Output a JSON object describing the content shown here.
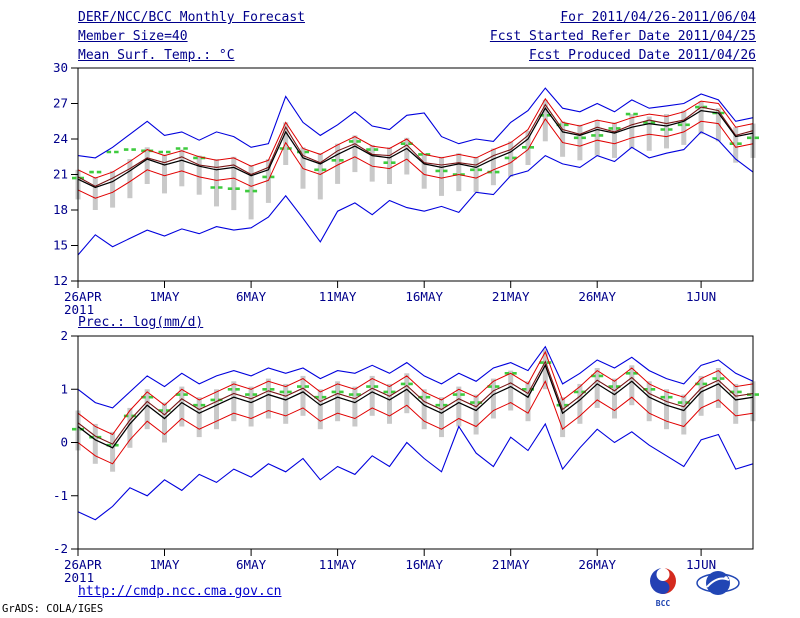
{
  "header": {
    "title": "DERF/NCC/BCC Monthly Forecast",
    "period": "For 2011/04/26-2011/06/04",
    "member_size": "Member Size=40",
    "refer_date": "Fcst Started Refer Date 2011/04/25",
    "produced_date": "Fcst Produced Date 2011/04/26"
  },
  "xaxis": {
    "n_days": 40,
    "tick_labels": [
      "26APR",
      "1MAY",
      "6MAY",
      "11MAY",
      "16MAY",
      "21MAY",
      "26MAY",
      "1JUN"
    ],
    "tick_positions": [
      0,
      5,
      10,
      15,
      20,
      25,
      30,
      36
    ],
    "year_label": "2011"
  },
  "colors": {
    "text_navy": "#00008b",
    "line_blue": "#0000dd",
    "line_red": "#e00000",
    "line_black": "#000000",
    "line_maroon": "#7a1616",
    "marker_green": "#3ecb3e",
    "bar_gray": "#c9c9c9",
    "link_blue": "#0000cd"
  },
  "chart_data": [
    {
      "type": "line",
      "title": "Mean Surf. Temp.: °C",
      "ylabel": "°C",
      "ylim": [
        12,
        30
      ],
      "yticks": [
        12,
        15,
        18,
        21,
        24,
        27,
        30
      ],
      "grid": false,
      "legend": "none",
      "series": [
        {
          "name": "spread-bar",
          "style": "bar",
          "color": "#c9c9c9",
          "low": [
            18.9,
            18.0,
            18.2,
            19.0,
            20.2,
            19.4,
            20.0,
            19.3,
            18.3,
            18.0,
            17.2,
            18.6,
            21.8,
            19.8,
            18.9,
            20.2,
            21.2,
            20.4,
            20.2,
            21.0,
            19.8,
            19.2,
            19.6,
            19.5,
            20.1,
            20.8,
            21.8,
            23.8,
            22.5,
            22.2,
            22.6,
            22.4,
            23.2,
            23.0,
            23.2,
            23.5,
            24.4,
            23.8,
            22.0,
            22.4
          ],
          "high": [
            21.4,
            20.8,
            21.3,
            22.3,
            23.3,
            22.7,
            23.1,
            22.6,
            22.3,
            22.5,
            21.8,
            22.3,
            25.4,
            23.3,
            22.8,
            23.6,
            24.3,
            23.5,
            23.3,
            24.1,
            22.8,
            22.5,
            22.8,
            22.5,
            23.2,
            23.8,
            24.7,
            27.3,
            25.5,
            25.2,
            25.6,
            25.4,
            26.1,
            25.9,
            26.1,
            26.4,
            27.2,
            26.6,
            25.0,
            25.3
          ]
        },
        {
          "name": "observation",
          "style": "dashes",
          "color": "#3ecb3e",
          "values": [
            20.7,
            21.2,
            22.9,
            23.1,
            23.0,
            22.9,
            23.2,
            22.4,
            19.9,
            19.8,
            19.6,
            20.8,
            23.2,
            22.9,
            21.4,
            22.2,
            23.8,
            23.1,
            22.0,
            23.6,
            22.7,
            21.3,
            21.0,
            21.4,
            21.2,
            22.4,
            23.3,
            26.0,
            25.2,
            24.1,
            24.3,
            24.9,
            26.1,
            25.4,
            24.8,
            25.2,
            26.7,
            26.2,
            23.6,
            24.1
          ]
        },
        {
          "name": "ensemble-max",
          "style": "line",
          "color": "#0000dd",
          "values": [
            22.6,
            22.4,
            23.3,
            24.4,
            25.5,
            24.3,
            24.6,
            23.9,
            24.6,
            24.2,
            23.3,
            23.6,
            27.6,
            25.4,
            24.3,
            25.2,
            26.3,
            25.1,
            24.8,
            26.0,
            26.2,
            24.2,
            23.6,
            24.0,
            23.8,
            25.4,
            26.4,
            28.3,
            26.6,
            26.3,
            27.0,
            26.3,
            27.3,
            26.6,
            26.8,
            27.0,
            27.8,
            27.3,
            25.5,
            25.8
          ]
        },
        {
          "name": "ensemble-min",
          "style": "line",
          "color": "#0000dd",
          "values": [
            14.2,
            15.9,
            14.9,
            15.6,
            16.3,
            15.8,
            16.4,
            16.0,
            16.6,
            16.3,
            16.5,
            17.4,
            19.2,
            17.3,
            15.3,
            17.9,
            18.6,
            17.6,
            18.8,
            18.2,
            17.9,
            18.3,
            17.8,
            19.5,
            19.3,
            20.9,
            21.3,
            22.6,
            21.9,
            21.6,
            22.6,
            22.1,
            23.3,
            22.4,
            22.8,
            23.1,
            24.6,
            23.9,
            22.3,
            21.2
          ]
        },
        {
          "name": "plus-1sd",
          "style": "line",
          "color": "#e00000",
          "values": [
            21.4,
            20.7,
            21.2,
            22.1,
            23.1,
            22.6,
            23.0,
            22.5,
            22.2,
            22.4,
            21.7,
            22.2,
            25.4,
            23.2,
            22.7,
            23.5,
            24.2,
            23.4,
            23.2,
            24.0,
            22.7,
            22.4,
            22.7,
            22.4,
            23.1,
            23.7,
            24.8,
            27.4,
            25.4,
            25.1,
            25.6,
            25.3,
            25.8,
            26.1,
            25.9,
            26.3,
            27.2,
            27.0,
            25.0,
            25.3
          ]
        },
        {
          "name": "minus-1sd",
          "style": "line",
          "color": "#e00000",
          "values": [
            19.7,
            19.0,
            19.5,
            20.4,
            21.4,
            20.9,
            21.3,
            20.8,
            20.5,
            20.7,
            20.0,
            20.5,
            23.7,
            21.5,
            21.0,
            21.8,
            22.5,
            21.7,
            21.5,
            22.3,
            21.0,
            20.7,
            21.0,
            20.7,
            21.4,
            22.0,
            23.1,
            25.7,
            23.7,
            23.4,
            23.9,
            23.6,
            24.1,
            24.4,
            24.2,
            24.6,
            25.5,
            25.3,
            23.3,
            23.6
          ]
        },
        {
          "name": "control-run",
          "style": "line",
          "color": "#7a1616",
          "values": [
            20.8,
            20.0,
            20.7,
            21.5,
            22.4,
            22.0,
            22.5,
            21.8,
            21.6,
            21.8,
            21.0,
            21.6,
            25.0,
            22.6,
            22.0,
            23.0,
            23.6,
            22.7,
            22.6,
            23.5,
            22.0,
            21.8,
            22.0,
            21.8,
            22.6,
            23.1,
            24.3,
            26.9,
            24.8,
            24.4,
            25.0,
            24.6,
            25.2,
            25.6,
            25.3,
            25.6,
            26.7,
            26.4,
            24.3,
            24.7
          ]
        },
        {
          "name": "ensemble-mean",
          "style": "line",
          "color": "#000000",
          "values": [
            20.6,
            19.9,
            20.4,
            21.3,
            22.3,
            21.8,
            22.2,
            21.7,
            21.4,
            21.6,
            20.9,
            21.4,
            24.6,
            22.4,
            21.9,
            22.7,
            23.4,
            22.6,
            22.4,
            23.2,
            21.9,
            21.6,
            21.9,
            21.6,
            22.3,
            22.9,
            24.0,
            26.6,
            24.6,
            24.3,
            24.8,
            24.5,
            25.0,
            25.3,
            25.1,
            25.5,
            26.4,
            26.2,
            24.2,
            24.5
          ]
        }
      ]
    },
    {
      "type": "line",
      "title": "Prec.: log(mm/d)",
      "ylabel": "log(mm/d)",
      "ylim": [
        -2,
        2
      ],
      "yticks": [
        -2,
        -1,
        0,
        1,
        2
      ],
      "grid": false,
      "legend": "none",
      "series": [
        {
          "name": "spread-bar",
          "style": "bar",
          "color": "#c9c9c9",
          "low": [
            -0.15,
            -0.4,
            -0.55,
            -0.1,
            0.25,
            0.0,
            0.3,
            0.1,
            0.25,
            0.4,
            0.3,
            0.45,
            0.35,
            0.5,
            0.25,
            0.4,
            0.3,
            0.5,
            0.35,
            0.55,
            0.25,
            0.1,
            0.3,
            0.15,
            0.45,
            0.6,
            0.4,
            1.0,
            0.1,
            0.35,
            0.65,
            0.45,
            0.7,
            0.4,
            0.25,
            0.15,
            0.5,
            0.65,
            0.35,
            0.4
          ],
          "high": [
            0.6,
            0.35,
            0.2,
            0.65,
            1.0,
            0.75,
            1.05,
            0.85,
            1.0,
            1.15,
            1.05,
            1.2,
            1.1,
            1.25,
            1.0,
            1.15,
            1.05,
            1.25,
            1.1,
            1.3,
            1.0,
            0.85,
            1.05,
            0.9,
            1.2,
            1.35,
            1.15,
            1.75,
            0.85,
            1.1,
            1.4,
            1.2,
            1.45,
            1.15,
            1.0,
            0.9,
            1.25,
            1.4,
            1.1,
            1.15
          ]
        },
        {
          "name": "observation",
          "style": "dashes",
          "color": "#3ecb3e",
          "values": [
            0.25,
            0.1,
            -0.05,
            0.5,
            0.85,
            0.6,
            0.9,
            0.7,
            0.8,
            1.0,
            0.9,
            1.0,
            0.95,
            1.05,
            0.85,
            0.95,
            0.9,
            1.05,
            0.95,
            1.1,
            0.85,
            0.7,
            0.9,
            0.75,
            1.05,
            1.3,
            1.0,
            1.5,
            0.7,
            0.95,
            1.25,
            1.05,
            1.3,
            1.0,
            0.85,
            0.75,
            1.1,
            1.2,
            0.95,
            0.9
          ]
        },
        {
          "name": "ensemble-max",
          "style": "line",
          "color": "#0000dd",
          "values": [
            1.0,
            0.75,
            0.65,
            0.95,
            1.25,
            1.05,
            1.3,
            1.1,
            1.25,
            1.35,
            1.25,
            1.4,
            1.3,
            1.4,
            1.2,
            1.35,
            1.3,
            1.45,
            1.3,
            1.5,
            1.25,
            1.1,
            1.3,
            1.15,
            1.4,
            1.5,
            1.35,
            1.8,
            1.1,
            1.3,
            1.55,
            1.4,
            1.6,
            1.35,
            1.2,
            1.1,
            1.45,
            1.55,
            1.3,
            1.15
          ]
        },
        {
          "name": "ensemble-min",
          "style": "line",
          "color": "#0000dd",
          "values": [
            -1.3,
            -1.45,
            -1.2,
            -0.85,
            -1.0,
            -0.7,
            -0.9,
            -0.6,
            -0.75,
            -0.5,
            -0.65,
            -0.4,
            -0.55,
            -0.3,
            -0.7,
            -0.45,
            -0.6,
            -0.25,
            -0.45,
            0.0,
            -0.3,
            -0.55,
            0.3,
            -0.2,
            -0.45,
            0.1,
            -0.15,
            0.35,
            -0.5,
            -0.1,
            0.25,
            0.0,
            0.2,
            -0.05,
            -0.25,
            -0.45,
            0.05,
            0.15,
            -0.5,
            -0.4
          ]
        },
        {
          "name": "plus-1sd",
          "style": "line",
          "color": "#e00000",
          "values": [
            0.55,
            0.3,
            0.15,
            0.6,
            0.95,
            0.7,
            1.0,
            0.8,
            0.95,
            1.1,
            1.0,
            1.15,
            1.05,
            1.2,
            0.95,
            1.1,
            1.0,
            1.2,
            1.05,
            1.25,
            0.95,
            0.8,
            1.0,
            0.85,
            1.15,
            1.3,
            1.1,
            1.7,
            0.8,
            1.05,
            1.35,
            1.15,
            1.4,
            1.1,
            0.95,
            0.85,
            1.2,
            1.35,
            1.05,
            1.1
          ]
        },
        {
          "name": "minus-1sd",
          "style": "line",
          "color": "#e00000",
          "values": [
            0.0,
            -0.25,
            -0.4,
            0.05,
            0.4,
            0.15,
            0.45,
            0.25,
            0.4,
            0.55,
            0.45,
            0.6,
            0.5,
            0.65,
            0.4,
            0.55,
            0.45,
            0.65,
            0.5,
            0.7,
            0.4,
            0.25,
            0.45,
            0.3,
            0.6,
            0.75,
            0.55,
            1.15,
            0.25,
            0.5,
            0.8,
            0.6,
            0.85,
            0.55,
            0.4,
            0.3,
            0.65,
            0.8,
            0.5,
            0.55
          ]
        },
        {
          "name": "control-run",
          "style": "line",
          "color": "#7a1616",
          "values": [
            0.37,
            0.12,
            -0.03,
            0.42,
            0.77,
            0.52,
            0.82,
            0.62,
            0.77,
            0.92,
            0.82,
            0.97,
            0.87,
            1.02,
            0.77,
            0.92,
            0.82,
            1.02,
            0.87,
            1.07,
            0.77,
            0.62,
            0.82,
            0.67,
            0.97,
            1.12,
            0.92,
            1.52,
            0.62,
            0.87,
            1.17,
            0.97,
            1.22,
            0.92,
            0.77,
            0.67,
            1.02,
            1.17,
            0.87,
            0.92
          ]
        },
        {
          "name": "ensemble-mean",
          "style": "line",
          "color": "#000000",
          "values": [
            0.3,
            0.05,
            -0.1,
            0.35,
            0.7,
            0.45,
            0.75,
            0.55,
            0.7,
            0.85,
            0.75,
            0.9,
            0.8,
            0.95,
            0.7,
            0.85,
            0.75,
            0.95,
            0.8,
            1.0,
            0.7,
            0.55,
            0.75,
            0.6,
            0.9,
            1.05,
            0.85,
            1.45,
            0.55,
            0.8,
            1.1,
            0.9,
            1.15,
            0.85,
            0.7,
            0.6,
            0.95,
            1.1,
            0.8,
            0.85
          ]
        }
      ]
    }
  ],
  "footer": {
    "url": "http://cmdp.ncc.cma.gov.cn",
    "credit": "GrADS: COLA/IGES",
    "bcc_label": "BCC"
  }
}
